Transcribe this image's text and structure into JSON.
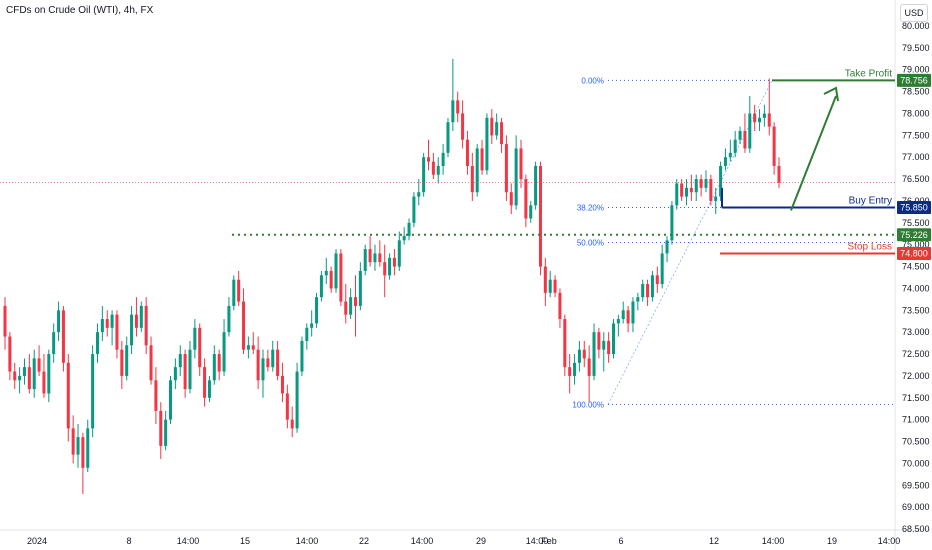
{
  "header": {
    "symbol_title": "CFDs on Crude Oil (WTI), 4h, FX",
    "currency": "USD"
  },
  "chart_data": {
    "type": "candlestick",
    "title": "CFDs on Crude Oil (WTI), 4h, FX",
    "ylim": [
      68.5,
      80.25
    ],
    "y_ticks": [
      "80.000",
      "79.500",
      "79.000",
      "78.500",
      "78.000",
      "77.500",
      "77.000",
      "76.500",
      "76.000",
      "75.500",
      "75.000",
      "74.500",
      "74.000",
      "73.500",
      "73.000",
      "72.500",
      "72.000",
      "71.500",
      "71.000",
      "70.500",
      "70.000",
      "69.500",
      "69.000",
      "68.500"
    ],
    "x_ticks": [
      "2024",
      "8",
      "14:00",
      "15",
      "14:00",
      "22",
      "14:00",
      "29",
      "14:00",
      "Feb",
      "6",
      "12",
      "14:00",
      "19",
      "14:00"
    ],
    "last_price": 76.42,
    "price_labels": [
      {
        "label": "Take Profit",
        "value": "78.756",
        "color": "#2e7d32"
      },
      {
        "label": "Buy Entry",
        "value": "75.850",
        "color": "#0d2a8a"
      },
      {
        "label": "",
        "value": "75.226",
        "color": "#2e7d32"
      },
      {
        "label": "Stop Loss",
        "value": "74.800",
        "color": "#e53935"
      }
    ],
    "fibonacci": [
      {
        "label": "0.00%",
        "value": 78.756
      },
      {
        "label": "38.20%",
        "value": 75.85
      },
      {
        "label": "50.00%",
        "value": 75.05
      },
      {
        "label": "100.00%",
        "value": 71.35
      }
    ],
    "support_level": 75.226,
    "candles": [
      [
        73.6,
        73.8,
        72.6,
        72.9
      ],
      [
        72.9,
        73.0,
        71.9,
        72.1
      ],
      [
        72.1,
        72.3,
        71.7,
        71.9
      ],
      [
        71.9,
        72.2,
        71.6,
        72.0
      ],
      [
        72.0,
        72.4,
        71.8,
        72.2
      ],
      [
        72.2,
        72.5,
        71.6,
        71.7
      ],
      [
        71.7,
        72.6,
        71.5,
        72.4
      ],
      [
        72.4,
        72.7,
        72.0,
        72.1
      ],
      [
        72.1,
        72.5,
        71.5,
        71.6
      ],
      [
        71.6,
        72.6,
        71.4,
        72.5
      ],
      [
        72.5,
        73.2,
        72.3,
        73.0
      ],
      [
        73.0,
        73.7,
        72.8,
        73.5
      ],
      [
        73.5,
        73.6,
        72.1,
        72.3
      ],
      [
        72.3,
        72.5,
        70.5,
        70.8
      ],
      [
        70.8,
        71.1,
        70.0,
        70.2
      ],
      [
        70.2,
        70.9,
        69.9,
        70.6
      ],
      [
        70.6,
        70.7,
        69.3,
        69.9
      ],
      [
        69.9,
        71.0,
        69.8,
        70.8
      ],
      [
        70.8,
        72.7,
        70.6,
        72.5
      ],
      [
        72.5,
        73.2,
        72.3,
        73.0
      ],
      [
        73.0,
        73.6,
        72.8,
        73.3
      ],
      [
        73.3,
        73.5,
        72.9,
        73.1
      ],
      [
        73.1,
        73.5,
        72.7,
        73.4
      ],
      [
        73.4,
        73.5,
        72.4,
        72.6
      ],
      [
        72.6,
        72.8,
        71.7,
        72.0
      ],
      [
        72.0,
        72.9,
        71.9,
        72.7
      ],
      [
        72.7,
        73.6,
        72.5,
        73.4
      ],
      [
        73.4,
        73.8,
        72.9,
        73.1
      ],
      [
        73.1,
        73.7,
        73.0,
        73.6
      ],
      [
        73.6,
        73.8,
        72.5,
        72.7
      ],
      [
        72.7,
        72.9,
        71.8,
        71.9
      ],
      [
        71.9,
        72.2,
        70.9,
        71.2
      ],
      [
        71.2,
        71.4,
        70.1,
        70.4
      ],
      [
        70.4,
        71.2,
        70.3,
        71.0
      ],
      [
        71.0,
        72.0,
        70.9,
        71.9
      ],
      [
        71.9,
        72.4,
        71.7,
        72.2
      ],
      [
        72.2,
        72.7,
        72.0,
        72.5
      ],
      [
        72.5,
        72.6,
        71.5,
        71.7
      ],
      [
        71.7,
        72.8,
        71.6,
        72.6
      ],
      [
        72.6,
        73.3,
        72.4,
        73.1
      ],
      [
        73.1,
        73.2,
        72.0,
        72.2
      ],
      [
        72.2,
        72.4,
        71.3,
        71.5
      ],
      [
        71.5,
        72.0,
        71.4,
        71.9
      ],
      [
        71.9,
        72.7,
        71.8,
        72.5
      ],
      [
        72.5,
        72.6,
        71.9,
        72.1
      ],
      [
        72.1,
        73.3,
        72.0,
        73.0
      ],
      [
        73.0,
        73.8,
        72.9,
        73.6
      ],
      [
        73.6,
        74.3,
        73.5,
        74.2
      ],
      [
        74.2,
        74.4,
        73.6,
        73.7
      ],
      [
        73.7,
        74.0,
        72.5,
        72.6
      ],
      [
        72.6,
        72.9,
        72.4,
        72.7
      ],
      [
        72.7,
        73.0,
        72.5,
        72.6
      ],
      [
        72.6,
        72.9,
        71.7,
        71.9
      ],
      [
        71.9,
        72.6,
        71.5,
        72.4
      ],
      [
        72.4,
        72.6,
        72.1,
        72.2
      ],
      [
        72.2,
        72.8,
        72.1,
        72.6
      ],
      [
        72.6,
        72.8,
        71.9,
        72.0
      ],
      [
        72.0,
        72.3,
        71.4,
        71.6
      ],
      [
        71.6,
        71.8,
        70.8,
        71.0
      ],
      [
        71.0,
        71.3,
        70.6,
        70.8
      ],
      [
        70.8,
        72.3,
        70.7,
        72.1
      ],
      [
        72.1,
        72.9,
        72.0,
        72.8
      ],
      [
        72.8,
        73.2,
        72.6,
        73.1
      ],
      [
        73.1,
        73.5,
        72.9,
        73.2
      ],
      [
        73.2,
        73.9,
        73.1,
        73.8
      ],
      [
        73.8,
        74.4,
        73.7,
        74.3
      ],
      [
        74.3,
        74.7,
        74.1,
        74.4
      ],
      [
        74.4,
        74.5,
        73.9,
        74.0
      ],
      [
        74.0,
        74.9,
        73.9,
        74.8
      ],
      [
        74.8,
        74.9,
        73.6,
        73.7
      ],
      [
        73.7,
        74.1,
        73.2,
        73.4
      ],
      [
        73.4,
        74.0,
        73.3,
        73.8
      ],
      [
        73.8,
        74.3,
        72.9,
        73.6
      ],
      [
        73.6,
        74.6,
        73.5,
        74.4
      ],
      [
        74.4,
        75.0,
        74.3,
        74.9
      ],
      [
        74.9,
        75.2,
        74.5,
        74.6
      ],
      [
        74.6,
        75.0,
        74.4,
        74.8
      ],
      [
        74.8,
        75.1,
        74.5,
        74.6
      ],
      [
        74.6,
        75.0,
        73.8,
        74.3
      ],
      [
        74.3,
        74.8,
        74.2,
        74.7
      ],
      [
        74.7,
        74.9,
        74.3,
        74.5
      ],
      [
        74.5,
        75.3,
        74.4,
        75.1
      ],
      [
        75.1,
        75.4,
        75.0,
        75.2
      ],
      [
        75.2,
        75.6,
        75.1,
        75.5
      ],
      [
        75.5,
        76.2,
        75.4,
        76.1
      ],
      [
        76.1,
        76.5,
        75.9,
        76.2
      ],
      [
        76.2,
        77.1,
        76.1,
        77.0
      ],
      [
        77.0,
        77.4,
        76.7,
        76.9
      ],
      [
        76.9,
        77.1,
        76.5,
        76.6
      ],
      [
        76.6,
        77.0,
        76.4,
        76.8
      ],
      [
        76.8,
        77.3,
        76.6,
        77.1
      ],
      [
        77.1,
        77.9,
        77.0,
        77.8
      ],
      [
        77.8,
        79.25,
        77.6,
        78.3
      ],
      [
        78.3,
        78.5,
        77.8,
        78.0
      ],
      [
        78.0,
        78.3,
        77.2,
        77.4
      ],
      [
        77.4,
        77.6,
        76.6,
        76.8
      ],
      [
        76.8,
        77.1,
        76.0,
        76.2
      ],
      [
        76.2,
        77.3,
        76.1,
        77.2
      ],
      [
        77.2,
        77.4,
        76.6,
        76.7
      ],
      [
        76.7,
        78.0,
        76.6,
        77.9
      ],
      [
        77.9,
        78.1,
        77.3,
        77.5
      ],
      [
        77.5,
        78.0,
        77.4,
        77.8
      ],
      [
        77.8,
        77.9,
        77.1,
        77.3
      ],
      [
        77.3,
        77.5,
        76.0,
        76.2
      ],
      [
        76.2,
        76.4,
        75.7,
        75.9
      ],
      [
        75.9,
        77.5,
        75.8,
        77.2
      ],
      [
        77.2,
        77.4,
        76.3,
        76.5
      ],
      [
        76.5,
        76.6,
        75.4,
        75.6
      ],
      [
        75.6,
        76.0,
        75.5,
        75.9
      ],
      [
        75.9,
        76.9,
        75.8,
        76.8
      ],
      [
        76.8,
        76.9,
        74.3,
        74.5
      ],
      [
        74.5,
        74.7,
        73.6,
        73.9
      ],
      [
        73.9,
        74.4,
        73.8,
        74.2
      ],
      [
        74.2,
        74.3,
        73.8,
        73.9
      ],
      [
        73.9,
        74.0,
        73.1,
        73.3
      ],
      [
        73.3,
        73.4,
        72.0,
        72.2
      ],
      [
        72.2,
        72.5,
        71.6,
        72.0
      ],
      [
        72.0,
        72.5,
        71.8,
        72.3
      ],
      [
        72.3,
        72.8,
        72.1,
        72.6
      ],
      [
        72.6,
        72.8,
        72.2,
        72.4
      ],
      [
        72.4,
        72.7,
        71.4,
        72.0
      ],
      [
        72.0,
        73.2,
        71.9,
        73.0
      ],
      [
        73.0,
        73.1,
        72.4,
        72.6
      ],
      [
        72.6,
        73.0,
        72.1,
        72.8
      ],
      [
        72.8,
        73.0,
        72.3,
        72.5
      ],
      [
        72.5,
        73.3,
        72.4,
        73.2
      ],
      [
        73.2,
        73.4,
        72.9,
        73.3
      ],
      [
        73.3,
        73.7,
        73.2,
        73.5
      ],
      [
        73.5,
        73.6,
        73.0,
        73.2
      ],
      [
        73.2,
        73.8,
        73.0,
        73.7
      ],
      [
        73.7,
        73.9,
        73.5,
        73.8
      ],
      [
        73.8,
        74.2,
        73.7,
        74.1
      ],
      [
        74.1,
        74.2,
        73.6,
        73.8
      ],
      [
        73.8,
        74.4,
        73.7,
        74.3
      ],
      [
        74.3,
        74.5,
        73.9,
        74.1
      ],
      [
        74.1,
        75.0,
        74.0,
        74.8
      ],
      [
        74.8,
        75.2,
        74.6,
        75.1
      ],
      [
        75.1,
        76.0,
        75.0,
        75.9
      ],
      [
        75.9,
        76.5,
        75.8,
        76.4
      ],
      [
        76.4,
        76.5,
        76.0,
        76.1
      ],
      [
        76.1,
        76.5,
        75.9,
        76.3
      ],
      [
        76.3,
        76.6,
        76.0,
        76.2
      ],
      [
        76.2,
        76.6,
        76.0,
        76.5
      ],
      [
        76.5,
        76.6,
        76.1,
        76.3
      ],
      [
        76.3,
        76.7,
        76.2,
        76.5
      ],
      [
        76.5,
        76.6,
        75.9,
        76.0
      ],
      [
        76.0,
        76.3,
        75.7,
        76.1
      ],
      [
        76.1,
        76.9,
        76.0,
        76.8
      ],
      [
        76.8,
        77.2,
        76.7,
        77.0
      ],
      [
        77.0,
        77.4,
        76.9,
        77.1
      ],
      [
        77.1,
        77.6,
        77.0,
        77.4
      ],
      [
        77.4,
        77.7,
        77.3,
        77.6
      ],
      [
        77.6,
        78.0,
        77.1,
        77.2
      ],
      [
        77.2,
        78.4,
        77.1,
        78.0
      ],
      [
        78.0,
        78.2,
        77.6,
        77.8
      ],
      [
        77.8,
        78.1,
        77.6,
        77.9
      ],
      [
        77.9,
        78.2,
        77.7,
        78.0
      ],
      [
        78.0,
        78.8,
        77.5,
        77.7
      ],
      [
        77.7,
        77.8,
        76.6,
        76.8
      ],
      [
        76.8,
        77.0,
        76.3,
        76.42
      ]
    ]
  }
}
